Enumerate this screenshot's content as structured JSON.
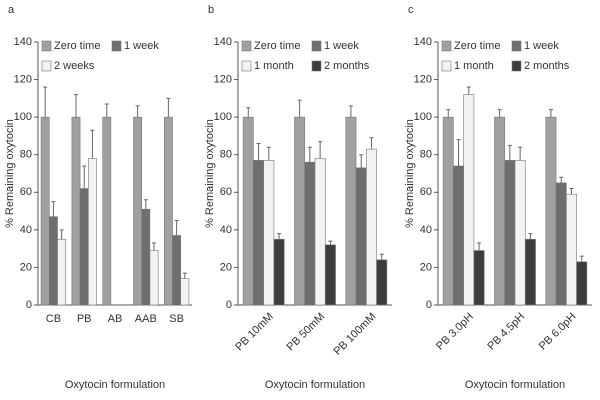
{
  "chart_data": [
    {
      "type": "bar",
      "panel_label": "a",
      "ylabel": "% Remaining oxytocin",
      "xlabel": "Oxytocin formulation",
      "categories": [
        "CB",
        "PB",
        "AB",
        "AAB",
        "SB"
      ],
      "ylim": [
        0,
        140
      ],
      "yticks": [
        0,
        20,
        40,
        60,
        80,
        100,
        120,
        140
      ],
      "series": [
        {
          "name": "Zero time",
          "color": "#a0a0a0",
          "values": [
            100,
            100,
            100,
            100,
            100
          ],
          "errors": [
            16,
            12,
            7,
            6,
            10
          ]
        },
        {
          "name": "1 week",
          "color": "#6e6e6e",
          "values": [
            47,
            62,
            0,
            51,
            37
          ],
          "errors": [
            8,
            12,
            0,
            5,
            8
          ]
        },
        {
          "name": "2 weeks",
          "color": "#f2f2f2",
          "values": [
            35,
            78,
            0,
            29,
            14
          ],
          "errors": [
            5,
            15,
            0,
            4,
            3
          ]
        }
      ]
    },
    {
      "type": "bar",
      "panel_label": "b",
      "ylabel": "% Remaining oxytocin",
      "xlabel": "Oxytocin formulation",
      "categories": [
        "PB 10mM",
        "PB 50mM",
        "PB 100mM"
      ],
      "ylim": [
        0,
        140
      ],
      "yticks": [
        0,
        20,
        40,
        60,
        80,
        100,
        120,
        140
      ],
      "series": [
        {
          "name": "Zero time",
          "color": "#a0a0a0",
          "values": [
            100,
            100,
            100
          ],
          "errors": [
            5,
            9,
            6
          ]
        },
        {
          "name": "1 week",
          "color": "#6e6e6e",
          "values": [
            77,
            76,
            73
          ],
          "errors": [
            9,
            8,
            7
          ]
        },
        {
          "name": "1 month",
          "color": "#f2f2f2",
          "values": [
            77,
            78,
            83
          ],
          "errors": [
            7,
            9,
            6
          ]
        },
        {
          "name": "2 months",
          "color": "#3c3c3c",
          "values": [
            35,
            32,
            24
          ],
          "errors": [
            3,
            2,
            3
          ]
        }
      ]
    },
    {
      "type": "bar",
      "panel_label": "c",
      "ylabel": "% Remaining oxytocin",
      "xlabel": "Oxytocin formulation",
      "categories": [
        "PB 3.0pH",
        "PB 4.5pH",
        "PB 6.0pH"
      ],
      "ylim": [
        0,
        140
      ],
      "yticks": [
        0,
        20,
        40,
        60,
        80,
        100,
        120,
        140
      ],
      "series": [
        {
          "name": "Zero time",
          "color": "#a0a0a0",
          "values": [
            100,
            100,
            100
          ],
          "errors": [
            4,
            4,
            4
          ]
        },
        {
          "name": "1 week",
          "color": "#6e6e6e",
          "values": [
            74,
            77,
            65
          ],
          "errors": [
            14,
            8,
            3
          ]
        },
        {
          "name": "1 month",
          "color": "#f2f2f2",
          "values": [
            112,
            77,
            59
          ],
          "errors": [
            4,
            7,
            3
          ]
        },
        {
          "name": "2 months",
          "color": "#3c3c3c",
          "values": [
            29,
            35,
            23
          ],
          "errors": [
            4,
            3,
            3
          ]
        }
      ]
    }
  ]
}
